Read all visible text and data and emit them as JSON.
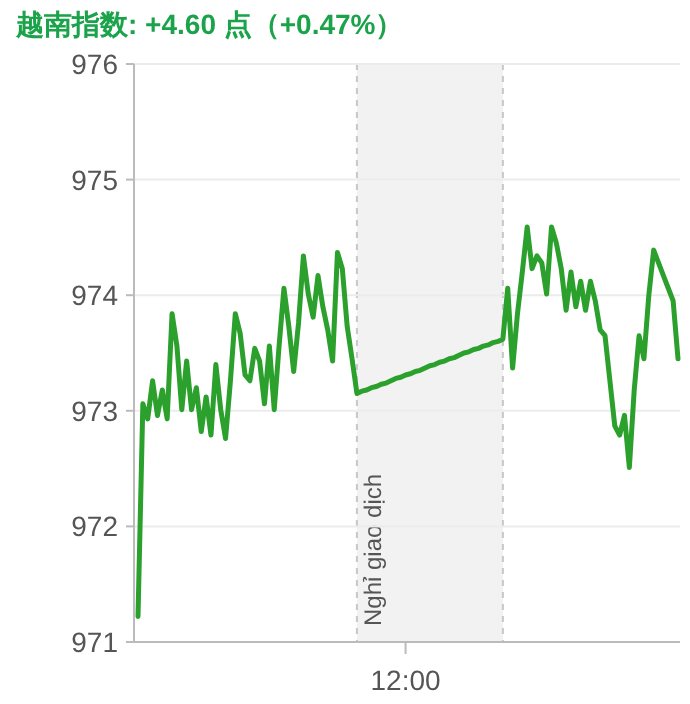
{
  "chart_data": {
    "type": "line",
    "title": "越南指数: +4.60 点（+0.47%）",
    "categories": [
      null,
      null,
      null,
      null,
      null,
      null,
      null,
      null,
      null,
      null,
      null,
      null,
      null,
      null,
      null,
      null,
      null,
      null,
      null,
      null,
      null,
      null,
      null,
      null,
      null,
      null,
      null,
      null,
      null,
      null,
      null,
      null,
      null,
      null,
      null,
      null,
      null,
      null,
      null,
      null,
      null,
      null,
      null,
      null,
      null,
      null,
      null,
      null,
      null,
      null,
      null,
      null,
      null,
      null,
      null,
      "12:00",
      null,
      null,
      null,
      null,
      null,
      null,
      null,
      null,
      null,
      null,
      null,
      null,
      null,
      null,
      null,
      null,
      null,
      null,
      null,
      null,
      null,
      null,
      null,
      null,
      null,
      null,
      null,
      null,
      null,
      null,
      null,
      null,
      null,
      null,
      null,
      null,
      null,
      null,
      null,
      null,
      null,
      null,
      null,
      null,
      null,
      null,
      null,
      null,
      null,
      null,
      null,
      null,
      null,
      null,
      null,
      null
    ],
    "series": [
      {
        "color": "#2ca02c",
        "values": [
          971.22,
          973.06,
          972.93,
          973.26,
          972.96,
          973.18,
          972.93,
          973.84,
          973.56,
          973.01,
          973.43,
          973.01,
          973.2,
          972.82,
          973.12,
          972.79,
          973.4,
          973.01,
          972.76,
          973.26,
          973.84,
          973.67,
          973.31,
          973.26,
          973.54,
          973.43,
          973.06,
          973.56,
          973.01,
          973.56,
          974.06,
          973.73,
          973.34,
          973.76,
          974.34,
          974.01,
          973.81,
          974.17,
          973.9,
          973.7,
          973.43,
          974.37,
          974.23,
          973.73,
          973.45,
          973.15,
          973.17,
          973.18,
          973.2,
          973.21,
          973.23,
          973.24,
          973.26,
          973.28,
          973.29,
          973.31,
          973.32,
          973.34,
          973.35,
          973.37,
          973.39,
          973.4,
          973.42,
          973.43,
          973.45,
          973.46,
          973.48,
          973.5,
          973.51,
          973.53,
          973.54,
          973.56,
          973.57,
          973.59,
          973.6,
          973.62,
          974.06,
          973.37,
          973.84,
          974.2,
          974.59,
          974.23,
          974.34,
          974.28,
          974.01,
          974.59,
          974.45,
          974.23,
          973.87,
          974.2,
          973.9,
          974.12,
          973.87,
          974.12,
          973.95,
          973.7,
          973.65,
          973.26,
          972.87,
          972.79,
          972.96,
          972.51,
          973.18,
          973.65,
          973.45,
          974.0,
          974.39,
          974.28,
          974.17,
          974.06,
          973.95,
          973.45
        ]
      }
    ],
    "ylim": [
      971,
      976
    ],
    "yticks": [
      971,
      972,
      973,
      974,
      975,
      976
    ],
    "grid": "y",
    "annotations": [
      "Nghỉ giao dịch"
    ],
    "marker": "none",
    "line_style": "solid"
  }
}
